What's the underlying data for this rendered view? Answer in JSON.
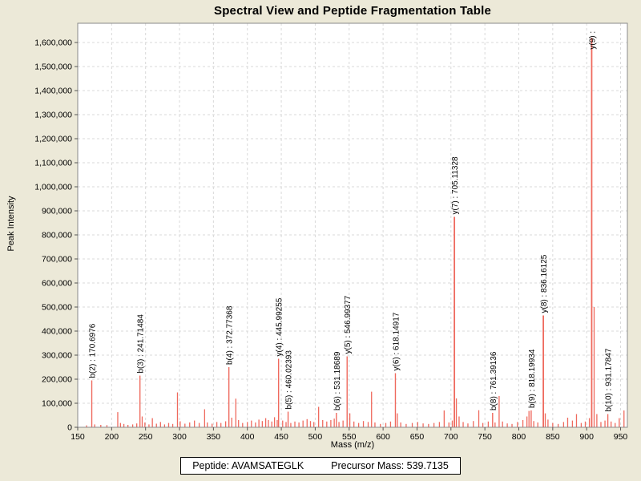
{
  "title": "Spectral View and Peptide Fragmentation Table",
  "footer": {
    "peptide": "Peptide: AVAMSATEGLK",
    "precursor_mass": "Precursor Mass: 539.7135"
  },
  "colors": {
    "background": "#ece9d8",
    "plot_background": "#ffffff",
    "peak": "#ef6a5e",
    "grid": "#d9d9d9",
    "border": "#8a8a8a",
    "tick": "#555555",
    "text": "#000000"
  },
  "chart_data": {
    "type": "bar",
    "subtype": "mass-spectrum-stick-plot",
    "title": "Spectral View and Peptide Fragmentation Table",
    "xlabel": "Mass (m/z)",
    "ylabel": "Peak Intensity",
    "xlim": [
      150,
      960
    ],
    "ylim": [
      0,
      1680000
    ],
    "x_ticks": [
      150,
      200,
      250,
      300,
      350,
      400,
      450,
      500,
      550,
      600,
      650,
      700,
      750,
      800,
      850,
      900,
      950
    ],
    "y_ticks": [
      0,
      100000,
      200000,
      300000,
      400000,
      500000,
      600000,
      700000,
      800000,
      900000,
      1000000,
      1100000,
      1200000,
      1300000,
      1400000,
      1500000,
      1600000
    ],
    "grid": "dashed both axes",
    "legend": "none",
    "labeled_peaks": [
      {
        "label": "b(2) : 170.6976",
        "mz": 170.6976,
        "intensity": 195000
      },
      {
        "label": "b(3) : 241.71484",
        "mz": 241.71484,
        "intensity": 215000
      },
      {
        "label": "b(4) : 372.77368",
        "mz": 372.77368,
        "intensity": 250000
      },
      {
        "label": "y(4) : 445.99255",
        "mz": 445.99255,
        "intensity": 285000
      },
      {
        "label": "b(5) : 460.02393",
        "mz": 460.02393,
        "intensity": 65000
      },
      {
        "label": "b(6) : 531.18689",
        "mz": 531.18689,
        "intensity": 60000
      },
      {
        "label": "y(5) : 546.99377",
        "mz": 546.99377,
        "intensity": 295000
      },
      {
        "label": "y(6) : 618.14917",
        "mz": 618.14917,
        "intensity": 225000
      },
      {
        "label": "y(7) : 705.11328",
        "mz": 705.11328,
        "intensity": 875000
      },
      {
        "label": "b(8) : 761.39136",
        "mz": 761.39136,
        "intensity": 60000
      },
      {
        "label": "b(9) : 818.19934",
        "mz": 818.19934,
        "intensity": 70000
      },
      {
        "label": "y(8) : 836.16125",
        "mz": 836.16125,
        "intensity": 465000
      },
      {
        "label": "y(9) :",
        "mz": 907.4,
        "intensity": 1620000
      },
      {
        "label": "b(10) : 931.17847",
        "mz": 931.17847,
        "intensity": 55000
      }
    ],
    "unlabeled_peaks": [
      [
        163,
        8000
      ],
      [
        175,
        12000
      ],
      [
        184,
        10000
      ],
      [
        193,
        9000
      ],
      [
        209,
        63000
      ],
      [
        213,
        18000
      ],
      [
        218,
        14000
      ],
      [
        224,
        10000
      ],
      [
        231,
        12000
      ],
      [
        237,
        16000
      ],
      [
        245,
        45000
      ],
      [
        249,
        20000
      ],
      [
        255,
        12000
      ],
      [
        260,
        38000
      ],
      [
        266,
        15000
      ],
      [
        272,
        22000
      ],
      [
        278,
        12000
      ],
      [
        284,
        18000
      ],
      [
        290,
        14000
      ],
      [
        297,
        145000
      ],
      [
        301,
        25000
      ],
      [
        308,
        15000
      ],
      [
        315,
        20000
      ],
      [
        322,
        28000
      ],
      [
        329,
        18000
      ],
      [
        337,
        75000
      ],
      [
        341,
        20000
      ],
      [
        348,
        15000
      ],
      [
        355,
        22000
      ],
      [
        361,
        18000
      ],
      [
        368,
        25000
      ],
      [
        377,
        40000
      ],
      [
        383,
        119000
      ],
      [
        387,
        30000
      ],
      [
        393,
        18000
      ],
      [
        400,
        22000
      ],
      [
        406,
        28000
      ],
      [
        412,
        20000
      ],
      [
        417,
        32000
      ],
      [
        422,
        26000
      ],
      [
        427,
        38000
      ],
      [
        431,
        30000
      ],
      [
        436,
        24000
      ],
      [
        440,
        42000
      ],
      [
        444,
        30000
      ],
      [
        452,
        28000
      ],
      [
        457,
        22000
      ],
      [
        464,
        18000
      ],
      [
        470,
        24000
      ],
      [
        476,
        20000
      ],
      [
        482,
        28000
      ],
      [
        488,
        34000
      ],
      [
        493,
        26000
      ],
      [
        498,
        22000
      ],
      [
        505,
        85000
      ],
      [
        511,
        30000
      ],
      [
        517,
        24000
      ],
      [
        523,
        30000
      ],
      [
        528,
        36000
      ],
      [
        535,
        22000
      ],
      [
        541,
        28000
      ],
      [
        551,
        58000
      ],
      [
        557,
        24000
      ],
      [
        564,
        18000
      ],
      [
        571,
        26000
      ],
      [
        578,
        22000
      ],
      [
        583,
        148000
      ],
      [
        588,
        20000
      ],
      [
        596,
        14000
      ],
      [
        604,
        18000
      ],
      [
        611,
        24000
      ],
      [
        621,
        58000
      ],
      [
        626,
        20000
      ],
      [
        634,
        14000
      ],
      [
        643,
        18000
      ],
      [
        651,
        22000
      ],
      [
        659,
        16000
      ],
      [
        667,
        14000
      ],
      [
        675,
        18000
      ],
      [
        683,
        22000
      ],
      [
        690,
        70000
      ],
      [
        697,
        20000
      ],
      [
        702,
        28000
      ],
      [
        708,
        120000
      ],
      [
        712,
        45000
      ],
      [
        718,
        22000
      ],
      [
        725,
        16000
      ],
      [
        733,
        26000
      ],
      [
        741,
        71000
      ],
      [
        747,
        18000
      ],
      [
        755,
        24000
      ],
      [
        765,
        20000
      ],
      [
        771,
        130000
      ],
      [
        776,
        24000
      ],
      [
        783,
        16000
      ],
      [
        790,
        14000
      ],
      [
        798,
        22000
      ],
      [
        806,
        30000
      ],
      [
        812,
        45000
      ],
      [
        815,
        68000
      ],
      [
        822,
        26000
      ],
      [
        828,
        20000
      ],
      [
        839,
        58000
      ],
      [
        843,
        32000
      ],
      [
        850,
        18000
      ],
      [
        858,
        14000
      ],
      [
        866,
        22000
      ],
      [
        872,
        40000
      ],
      [
        879,
        28000
      ],
      [
        885,
        55000
      ],
      [
        892,
        18000
      ],
      [
        898,
        24000
      ],
      [
        904,
        38000
      ],
      [
        911,
        500000
      ],
      [
        915,
        55000
      ],
      [
        921,
        22000
      ],
      [
        927,
        28000
      ],
      [
        936,
        24000
      ],
      [
        942,
        18000
      ],
      [
        948,
        38000
      ],
      [
        955,
        70000
      ]
    ]
  }
}
